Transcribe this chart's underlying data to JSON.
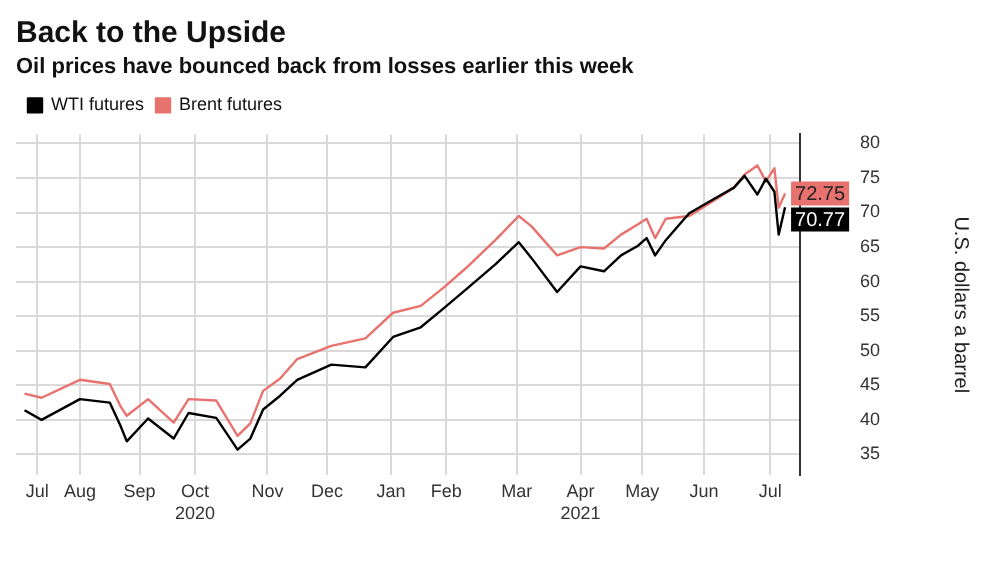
{
  "chart_data": {
    "type": "line",
    "title": "Back to the Upside",
    "subtitle": "Oil prices have bounced back from losses earlier this week",
    "ylabel": "U.S. dollars a barrel",
    "x": [
      "2020-07-20",
      "2020-07-28",
      "2020-08-15",
      "2020-08-29",
      "2020-09-03",
      "2020-09-06",
      "2020-09-16",
      "2020-09-28",
      "2020-10-05",
      "2020-10-18",
      "2020-10-28",
      "2020-11-03",
      "2020-11-09",
      "2020-11-17",
      "2020-11-25",
      "2020-12-11",
      "2020-12-27",
      "2021-01-09",
      "2021-01-22",
      "2021-02-02",
      "2021-02-12",
      "2021-02-26",
      "2021-03-09",
      "2021-03-15",
      "2021-03-27",
      "2021-04-07",
      "2021-04-18",
      "2021-04-26",
      "2021-05-04",
      "2021-05-08",
      "2021-05-12",
      "2021-05-17",
      "2021-05-28",
      "2021-06-10",
      "2021-06-18",
      "2021-06-23",
      "2021-06-29",
      "2021-07-03",
      "2021-07-07",
      "2021-07-09",
      "2021-07-12"
    ],
    "series": [
      {
        "name": "WTI futures",
        "color": "#000000",
        "values": [
          41.4,
          40.0,
          43.0,
          42.5,
          39.2,
          36.9,
          40.2,
          37.3,
          41.0,
          40.3,
          35.7,
          37.3,
          41.5,
          43.5,
          45.8,
          48.0,
          47.6,
          52.0,
          53.4,
          56.2,
          58.8,
          62.5,
          65.7,
          63.4,
          58.5,
          62.2,
          61.5,
          63.8,
          65.2,
          66.3,
          63.8,
          66.0,
          69.9,
          72.2,
          73.6,
          75.3,
          72.6,
          74.9,
          73.0,
          66.8,
          70.77
        ],
        "value_labels": [
          null,
          null,
          null,
          null,
          null,
          null,
          null,
          null,
          null,
          null,
          null,
          null,
          null,
          null,
          null,
          null,
          null,
          null,
          null,
          null,
          null,
          null,
          null,
          null,
          null,
          null,
          null,
          null,
          null,
          null,
          null,
          null,
          null,
          null,
          null,
          null,
          null,
          null,
          null,
          null,
          "70.77"
        ]
      },
      {
        "name": "Brent futures",
        "color": "#e8726e",
        "values": [
          43.8,
          43.2,
          45.8,
          45.2,
          42.0,
          40.6,
          43.0,
          39.6,
          43.0,
          42.8,
          37.7,
          39.5,
          44.2,
          46.0,
          48.8,
          50.7,
          51.8,
          55.5,
          56.5,
          59.2,
          61.9,
          66.0,
          69.5,
          68.0,
          63.8,
          65.0,
          64.8,
          66.8,
          68.3,
          69.1,
          66.3,
          69.1,
          69.5,
          72.0,
          73.6,
          75.5,
          76.8,
          74.5,
          76.4,
          70.7,
          72.75
        ],
        "value_labels": [
          null,
          null,
          null,
          null,
          null,
          null,
          null,
          null,
          null,
          null,
          null,
          null,
          null,
          null,
          null,
          null,
          null,
          null,
          null,
          null,
          null,
          null,
          null,
          null,
          null,
          null,
          null,
          null,
          null,
          null,
          null,
          null,
          null,
          null,
          null,
          null,
          null,
          null,
          null,
          null,
          "72.75"
        ]
      }
    ],
    "xlim": [
      "2020-07-16",
      "2021-07-19"
    ],
    "xticks": [
      {
        "value": "2020-07-26",
        "label": "Jul"
      },
      {
        "value": "2020-08-15",
        "label": "Aug"
      },
      {
        "value": "2020-09-12",
        "label": "Sep"
      },
      {
        "value": "2020-10-08",
        "label": "Oct\n2020"
      },
      {
        "value": "2020-11-11",
        "label": "Nov"
      },
      {
        "value": "2020-12-09",
        "label": "Dec"
      },
      {
        "value": "2021-01-08",
        "label": "Jan"
      },
      {
        "value": "2021-02-03",
        "label": "Feb"
      },
      {
        "value": "2021-03-08",
        "label": "Mar"
      },
      {
        "value": "2021-04-07",
        "label": "Apr\n2021"
      },
      {
        "value": "2021-05-06",
        "label": "May"
      },
      {
        "value": "2021-06-04",
        "label": "Jun"
      },
      {
        "value": "2021-07-05",
        "label": "Jul"
      }
    ],
    "ylim": [
      32,
      81.3
    ],
    "yticks": [
      35,
      40,
      45,
      50,
      55,
      60,
      65,
      70,
      75,
      80
    ],
    "grid": true,
    "legend": "top left",
    "marker": "none",
    "line_style": "solid"
  }
}
